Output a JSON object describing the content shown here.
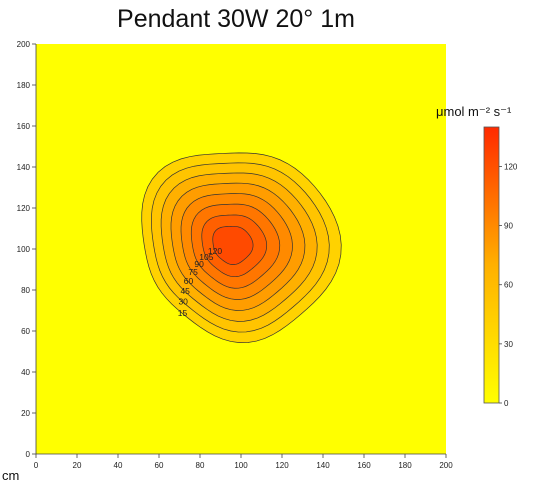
{
  "chart_data": {
    "type": "heatmap",
    "subtype": "contour",
    "title": "Pendant 30W 20° 1m",
    "x_unit_label": "cm",
    "xlim": [
      0,
      200
    ],
    "ylim": [
      0,
      200
    ],
    "x_ticks": [
      "0",
      "20",
      "40",
      "60",
      "80",
      "100",
      "120",
      "140",
      "160",
      "180",
      "200"
    ],
    "y_ticks": [
      "0",
      "20",
      "40",
      "60",
      "80",
      "100",
      "120",
      "140",
      "160",
      "180",
      "200"
    ],
    "colorbar": {
      "label": "μmol m⁻² s⁻¹",
      "range": [
        0,
        140
      ],
      "ticks": [
        "0",
        "30",
        "60",
        "90",
        "120"
      ],
      "color_low": "#ffff00",
      "color_high": "#ff2a00"
    },
    "peak": {
      "x": 95,
      "y": 102,
      "approx_value": 135
    },
    "contours": [
      {
        "level": 15,
        "label": "15",
        "color": "#ffd200"
      },
      {
        "level": 30,
        "label": "30",
        "color": "#ffc400"
      },
      {
        "level": 45,
        "label": "45",
        "color": "#ffb000"
      },
      {
        "level": 60,
        "label": "60",
        "color": "#ff9d00"
      },
      {
        "level": 75,
        "label": "75",
        "color": "#ff8a00"
      },
      {
        "level": 90,
        "label": "90",
        "color": "#ff7600"
      },
      {
        "level": 105,
        "label": "105",
        "color": "#ff6000"
      },
      {
        "level": 120,
        "label": "120",
        "color": "#ff4a00"
      }
    ]
  }
}
